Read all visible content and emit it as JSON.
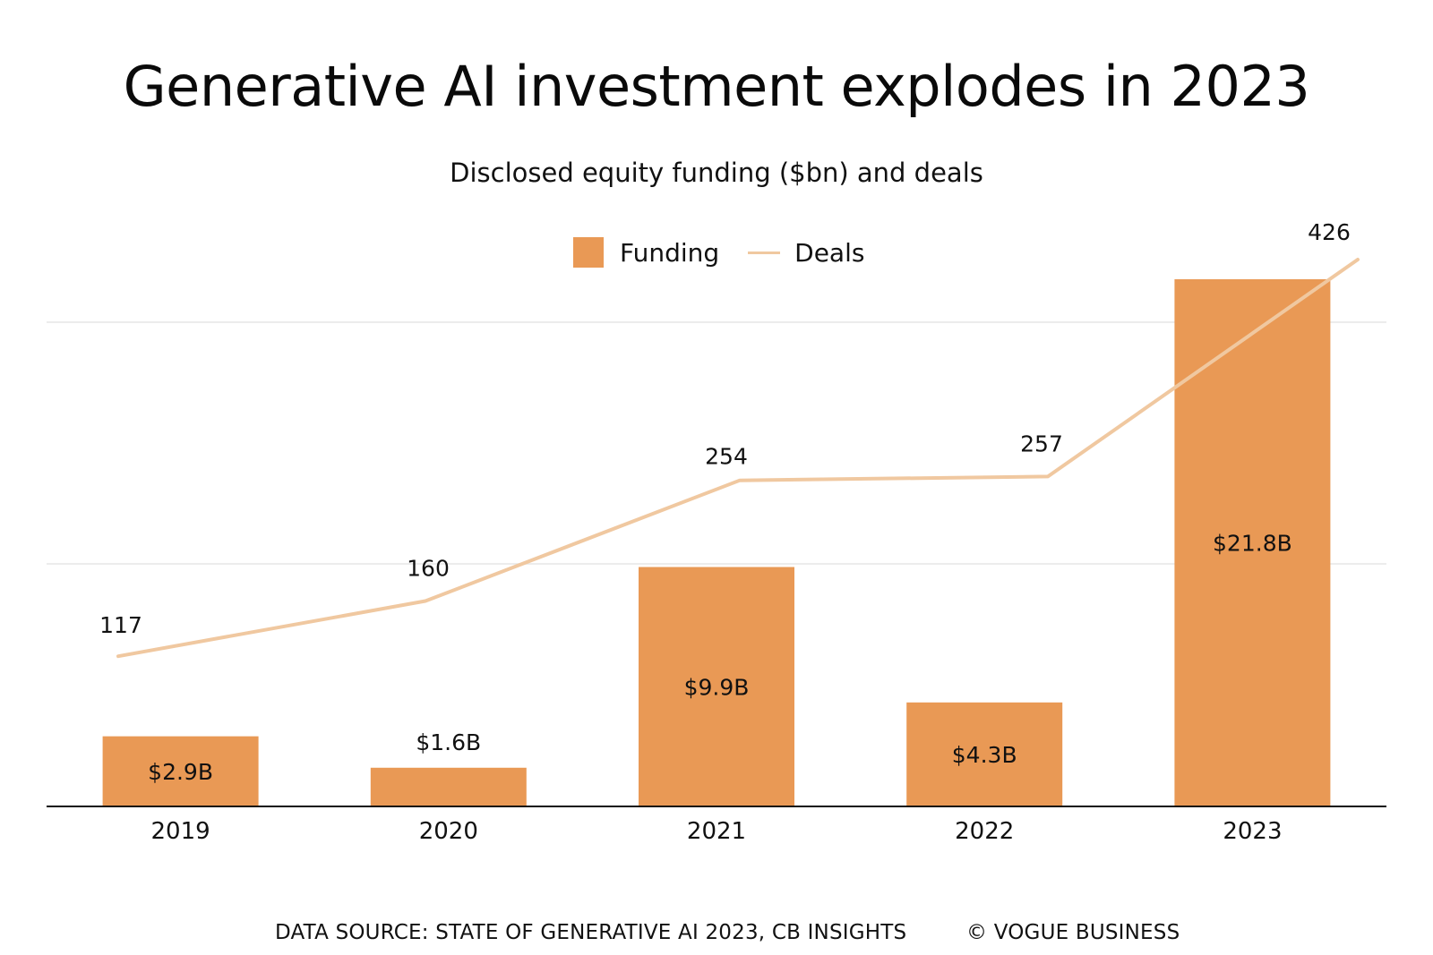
{
  "title": "Generative AI investment explodes in 2023",
  "subtitle": "Disclosed equity funding ($bn) and deals",
  "legend": {
    "funding": "Funding",
    "deals": "Deals"
  },
  "colors": {
    "bar": "#E99955",
    "line": "#F0C8A0",
    "grid": "#E6E6E6",
    "axis": "#111111"
  },
  "chart_data": {
    "type": "bar",
    "categories": [
      "2019",
      "2020",
      "2021",
      "2022",
      "2023"
    ],
    "series": [
      {
        "name": "Funding",
        "type": "bar",
        "values": [
          2.9,
          1.6,
          9.9,
          4.3,
          21.8
        ],
        "labels": [
          "$2.9B",
          "$1.6B",
          "$9.9B",
          "$4.3B",
          "$21.8B"
        ]
      },
      {
        "name": "Deals",
        "type": "line",
        "values": [
          117,
          160,
          254,
          257,
          426
        ],
        "labels": [
          "117",
          "160",
          "254",
          "257",
          "426"
        ]
      }
    ],
    "funding_range": [
      0,
      21.8
    ],
    "deals_range": [
      0,
      426
    ],
    "grid": true,
    "legend_position": "top"
  },
  "footer": {
    "source": "DATA SOURCE: STATE OF GENERATIVE AI 2023, CB INSIGHTS",
    "credit": "© VOGUE BUSINESS"
  }
}
